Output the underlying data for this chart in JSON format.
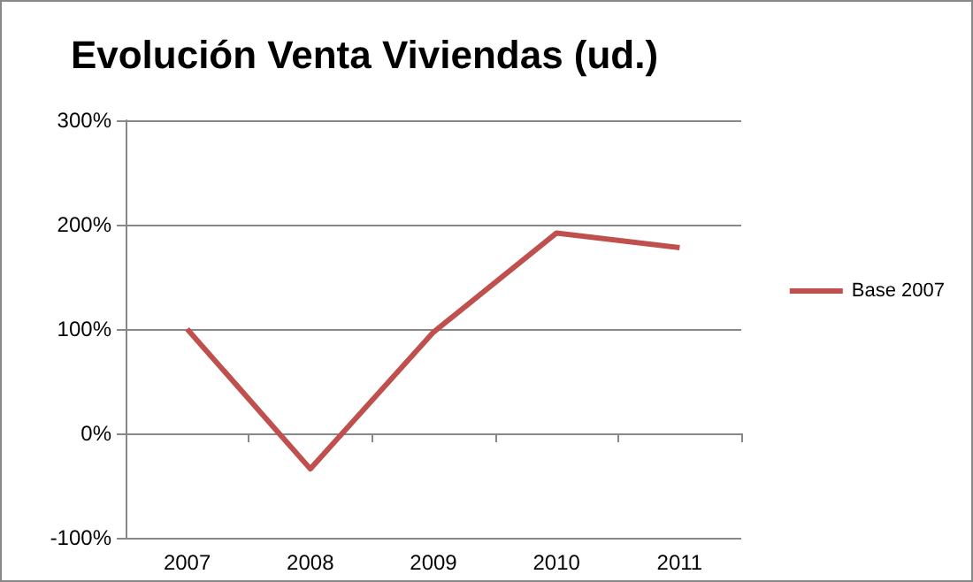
{
  "chart_data": {
    "type": "line",
    "title": "Evolución Venta Viviendas (ud.)",
    "categories": [
      "2007",
      "2008",
      "2009",
      "2010",
      "2011"
    ],
    "series": [
      {
        "name": "Base 2007",
        "color": "#c0504d",
        "values": [
          100,
          -34,
          97,
          192,
          178
        ]
      }
    ],
    "ylim": [
      -100,
      300
    ],
    "yticks": [
      {
        "value": -100,
        "label": "-100%"
      },
      {
        "value": 0,
        "label": "0%"
      },
      {
        "value": 100,
        "label": "100%"
      },
      {
        "value": 200,
        "label": "200%"
      },
      {
        "value": 300,
        "label": "300%"
      }
    ],
    "grid": "y",
    "legend": "right",
    "marker": "none",
    "line_style": "solid"
  }
}
